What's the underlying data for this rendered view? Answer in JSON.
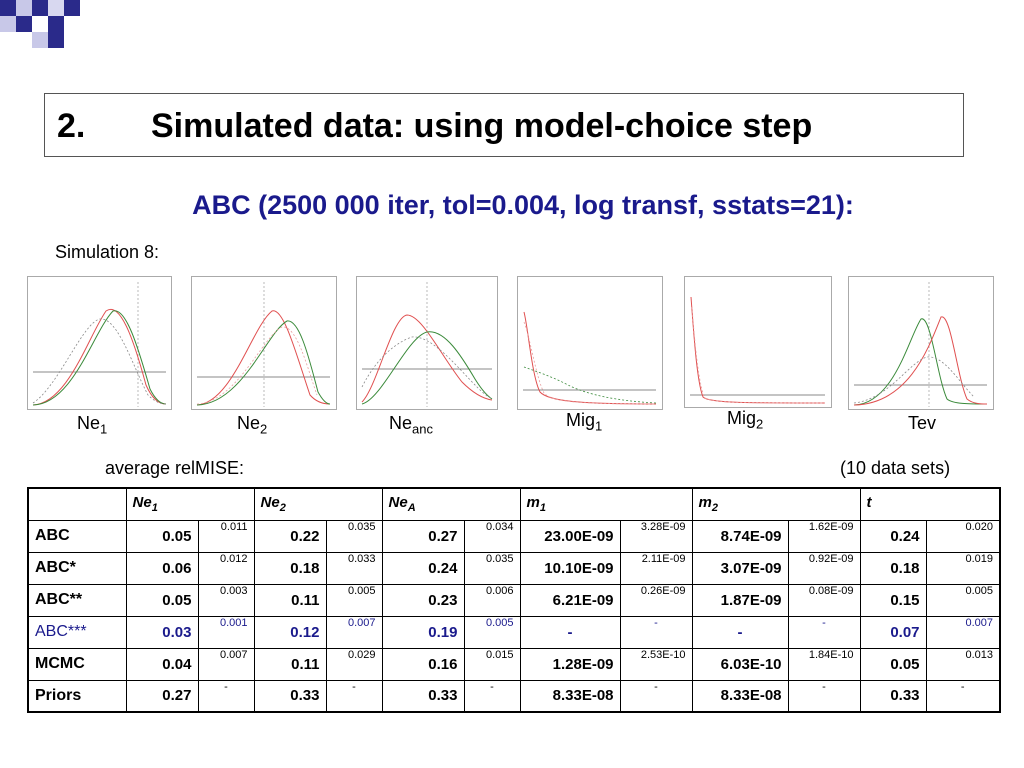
{
  "slide": {
    "title_number": "2.",
    "title": "Simulated data: using model-choice step",
    "subtitle": "ABC (2500 000 iter, tol=0.004, log transf, sstats=21):",
    "simulation_label": "Simulation 8:",
    "average_label": "average relMISE:",
    "datasets_label": "(10 data sets)",
    "accent_color": "#1a1a8c"
  },
  "plots": [
    {
      "name": "Ne",
      "sub": "1"
    },
    {
      "name": "Ne",
      "sub": "2"
    },
    {
      "name": "Ne",
      "sub": "anc"
    },
    {
      "name": "Mig",
      "sub": "1"
    },
    {
      "name": "Mig",
      "sub": "2"
    },
    {
      "name": "Tev",
      "sub": ""
    }
  ],
  "table": {
    "headers": [
      {
        "name": "Ne",
        "sub": "1"
      },
      {
        "name": "Ne",
        "sub": "2"
      },
      {
        "name": "Ne",
        "sub": "A"
      },
      {
        "name": "m",
        "sub": "1"
      },
      {
        "name": "m",
        "sub": "2"
      },
      {
        "name": "t",
        "sub": ""
      }
    ],
    "rows": [
      {
        "label": "ABC",
        "cells": [
          "0.05",
          "0.011",
          "0.22",
          "0.035",
          "0.27",
          "0.034",
          "23.00E-09",
          "3.28E-09",
          "8.74E-09",
          "1.62E-09",
          "0.24",
          "0.020"
        ]
      },
      {
        "label": "ABC*",
        "cells": [
          "0.06",
          "0.012",
          "0.18",
          "0.033",
          "0.24",
          "0.035",
          "10.10E-09",
          "2.11E-09",
          "3.07E-09",
          "0.92E-09",
          "0.18",
          "0.019"
        ]
      },
      {
        "label": "ABC**",
        "cells": [
          "0.05",
          "0.003",
          "0.11",
          "0.005",
          "0.23",
          "0.006",
          "6.21E-09",
          "0.26E-09",
          "1.87E-09",
          "0.08E-09",
          "0.15",
          "0.005"
        ]
      },
      {
        "label": "ABC***",
        "cells": [
          "0.03",
          "0.001",
          "0.12",
          "0.007",
          "0.19",
          "0.005",
          "-",
          "-",
          "-",
          "-",
          "0.07",
          "0.007"
        ]
      },
      {
        "label": "MCMC",
        "cells": [
          "0.04",
          "0.007",
          "0.11",
          "0.029",
          "0.16",
          "0.015",
          "1.28E-09",
          "2.53E-10",
          "6.03E-10",
          "1.84E-10",
          "0.05",
          "0.013"
        ]
      },
      {
        "label": "Priors",
        "cells": [
          "0.27",
          "-",
          "0.33",
          "-",
          "0.33",
          "-",
          "8.33E-08",
          "-",
          "8.33E-08",
          "-",
          "0.33",
          "-"
        ]
      }
    ]
  }
}
